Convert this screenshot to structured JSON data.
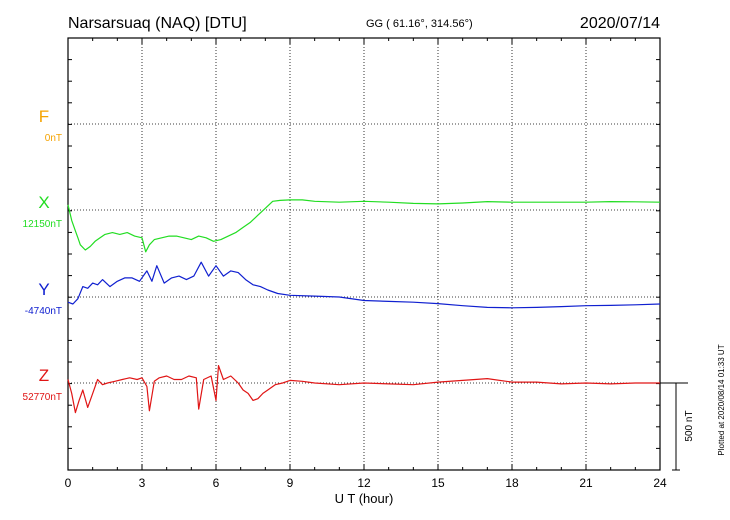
{
  "header": {
    "station": "Narsarsuaq (NAQ)  [DTU]",
    "coords": "GG ( 61.16°, 314.56°)",
    "date": "2020/07/14"
  },
  "footnote": "Plotted at 2020/08/14 01:33 UT",
  "chart_data": {
    "type": "line",
    "xlabel": "U T (hour)",
    "xlim": [
      0,
      24
    ],
    "x_ticks": [
      "0",
      "3",
      "6",
      "9",
      "12",
      "15",
      "18",
      "21",
      "24"
    ],
    "y_unit": "nT",
    "scale_bar_label": "500 nT",
    "scale_bar_value": 500,
    "grid": true,
    "series": [
      {
        "name": "F",
        "baseline_label": "0nT",
        "color": "#f5a300",
        "x": [],
        "values": []
      },
      {
        "name": "X",
        "baseline_label": "12150nT",
        "color": "#22dd22",
        "x": [
          0,
          0.15,
          0.3,
          0.4,
          0.5,
          0.7,
          0.9,
          1.1,
          1.3,
          1.5,
          1.8,
          2.1,
          2.4,
          2.7,
          3.0,
          3.15,
          3.3,
          3.5,
          3.8,
          4.1,
          4.4,
          4.7,
          5.0,
          5.3,
          5.6,
          5.9,
          6.2,
          6.5,
          6.8,
          7.1,
          7.4,
          7.7,
          8.0,
          8.3,
          8.6,
          9.0,
          9.5,
          10,
          11,
          12,
          13,
          14,
          15,
          16,
          17,
          18,
          19,
          20,
          21,
          22,
          23,
          24
        ],
        "values": [
          30,
          -60,
          -120,
          -160,
          -200,
          -230,
          -210,
          -180,
          -160,
          -140,
          -130,
          -140,
          -130,
          -150,
          -160,
          -240,
          -200,
          -170,
          -160,
          -150,
          -150,
          -160,
          -170,
          -150,
          -160,
          -180,
          -170,
          -150,
          -130,
          -100,
          -70,
          -30,
          10,
          50,
          55,
          58,
          58,
          50,
          45,
          50,
          45,
          38,
          35,
          40,
          48,
          45,
          45,
          45,
          45,
          48,
          47,
          45
        ]
      },
      {
        "name": "Y",
        "baseline_label": "-4740nT",
        "color": "#1020d0",
        "x": [
          0,
          0.2,
          0.4,
          0.6,
          0.8,
          1.0,
          1.2,
          1.4,
          1.7,
          2.0,
          2.3,
          2.6,
          2.9,
          3.2,
          3.4,
          3.6,
          3.9,
          4.2,
          4.5,
          4.8,
          5.1,
          5.4,
          5.7,
          6.0,
          6.3,
          6.6,
          6.9,
          7.2,
          7.5,
          7.8,
          8.1,
          8.5,
          9,
          10,
          11,
          12,
          13,
          14,
          15,
          16,
          17,
          18,
          19,
          20,
          21,
          22,
          23,
          24
        ],
        "values": [
          -30,
          -40,
          -10,
          60,
          50,
          80,
          70,
          100,
          60,
          90,
          110,
          110,
          90,
          150,
          90,
          180,
          80,
          110,
          120,
          100,
          120,
          200,
          120,
          180,
          120,
          150,
          140,
          100,
          70,
          60,
          40,
          20,
          10,
          5,
          0,
          -20,
          -25,
          -30,
          -38,
          -50,
          -60,
          -62,
          -60,
          -55,
          -50,
          -48,
          -45,
          -40
        ]
      },
      {
        "name": "Z",
        "baseline_label": "52770nT",
        "color": "#e01515",
        "x": [
          0,
          0.15,
          0.3,
          0.45,
          0.6,
          0.8,
          1.0,
          1.2,
          1.4,
          1.6,
          1.9,
          2.2,
          2.5,
          2.8,
          3.0,
          3.2,
          3.3,
          3.5,
          3.7,
          4.0,
          4.3,
          4.6,
          4.9,
          5.2,
          5.3,
          5.5,
          5.8,
          6.0,
          6.1,
          6.3,
          6.6,
          6.9,
          7.1,
          7.3,
          7.5,
          7.7,
          7.9,
          8.1,
          8.4,
          8.7,
          9.0,
          9.5,
          10,
          11,
          12,
          13,
          14,
          15,
          16,
          17,
          18,
          19,
          20,
          21,
          22,
          23,
          24
        ],
        "values": [
          20,
          -60,
          -170,
          -100,
          -40,
          -140,
          -60,
          20,
          -10,
          0,
          10,
          20,
          30,
          20,
          30,
          -20,
          -160,
          10,
          30,
          40,
          20,
          20,
          40,
          30,
          -150,
          20,
          40,
          -100,
          100,
          20,
          40,
          0,
          -40,
          -60,
          -100,
          -90,
          -60,
          -40,
          -10,
          0,
          15,
          10,
          0,
          -10,
          0,
          -5,
          -10,
          5,
          15,
          25,
          5,
          5,
          -5,
          0,
          -5,
          0,
          0
        ]
      }
    ]
  }
}
